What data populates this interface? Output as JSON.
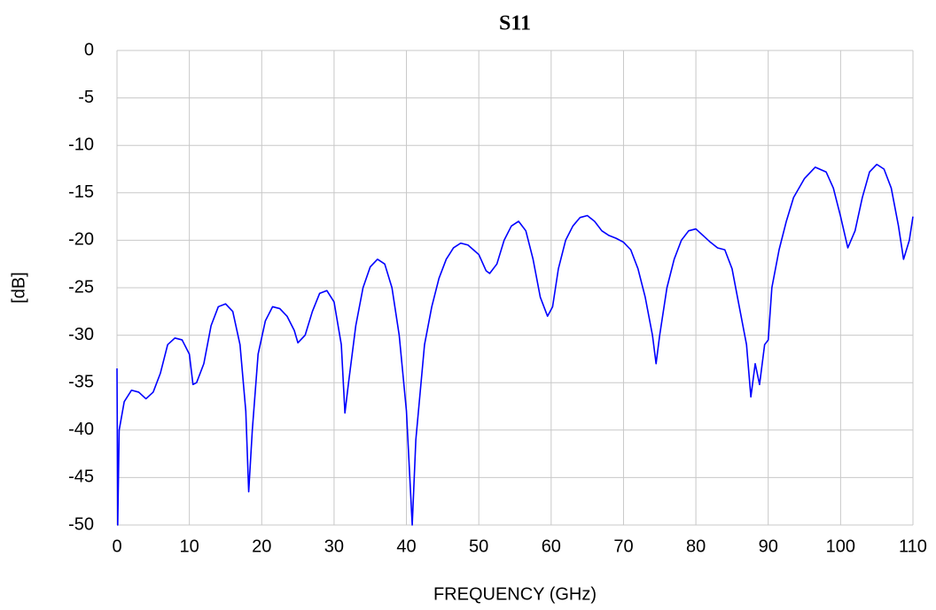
{
  "chart_data": {
    "type": "line",
    "title": "S11",
    "x_label": "FREQUENCY (GHz)",
    "y_label": "[dB]",
    "x": [
      0,
      0.1,
      0.3,
      1,
      2,
      3,
      4,
      5,
      6,
      7,
      8,
      9,
      10,
      10.5,
      11,
      12,
      13,
      14,
      15,
      16,
      17,
      17.8,
      18.2,
      18.7,
      19.5,
      20.5,
      21.5,
      22.5,
      23.5,
      24.5,
      25,
      26,
      27,
      28,
      29,
      30,
      31,
      31.5,
      32,
      33,
      34,
      35,
      36,
      37,
      38,
      39,
      40,
      40.8,
      41.3,
      42.5,
      43.5,
      44.5,
      45.5,
      46.5,
      47.5,
      48.5,
      50,
      51,
      51.5,
      52.5,
      53.5,
      54.5,
      55.5,
      56.5,
      57.5,
      58.5,
      59.5,
      60.2,
      61,
      62,
      63,
      64,
      65,
      66,
      67,
      68,
      69,
      70,
      71,
      72,
      73,
      74,
      74.5,
      75,
      76,
      77,
      78,
      79,
      80,
      81,
      82,
      83,
      84,
      85,
      86,
      87,
      87.6,
      88.2,
      88.8,
      89.5,
      90,
      90.5,
      91.5,
      92.5,
      93.5,
      95,
      96.5,
      98,
      99,
      100,
      101,
      102,
      103,
      104,
      105,
      106,
      107,
      108,
      108.7,
      109.5,
      110
    ],
    "series": [
      {
        "color": "#0000ff",
        "values": [
          -33.5,
          -50,
          -40,
          -37,
          -35.8,
          -36,
          -36.7,
          -36,
          -34,
          -31,
          -30.3,
          -30.5,
          -32,
          -35.2,
          -35,
          -33,
          -29,
          -27,
          -26.7,
          -27.5,
          -31,
          -38,
          -46.5,
          -40,
          -32,
          -28.5,
          -27,
          -27.2,
          -28,
          -29.5,
          -30.8,
          -30,
          -27.5,
          -25.6,
          -25.3,
          -26.5,
          -31,
          -38.2,
          -35,
          -29,
          -25,
          -22.8,
          -22,
          -22.5,
          -25,
          -30,
          -38,
          -50,
          -41,
          -31,
          -27,
          -24,
          -22,
          -20.8,
          -20.3,
          -20.5,
          -21.5,
          -23.2,
          -23.5,
          -22.5,
          -20,
          -18.5,
          -18,
          -19,
          -22,
          -26,
          -28,
          -27,
          -23,
          -20,
          -18.5,
          -17.6,
          -17.4,
          -18,
          -19,
          -19.5,
          -19.8,
          -20.2,
          -21,
          -23,
          -26,
          -30,
          -33,
          -30,
          -25,
          -22,
          -20,
          -19,
          -18.8,
          -19.5,
          -20.2,
          -20.8,
          -21,
          -23,
          -27,
          -31,
          -36.5,
          -33,
          -35.2,
          -31,
          -30.5,
          -25,
          -21,
          -18,
          -15.5,
          -13.5,
          -12.3,
          -12.8,
          -14.5,
          -17.5,
          -20.8,
          -19,
          -15.5,
          -12.8,
          -12,
          -12.5,
          -14.5,
          -18.5,
          -22,
          -20,
          -17.5
        ]
      }
    ],
    "xlim": [
      0,
      110
    ],
    "ylim": [
      -50,
      0
    ],
    "xticks": [
      0,
      10,
      20,
      30,
      40,
      50,
      60,
      70,
      80,
      90,
      100,
      110
    ],
    "yticks": [
      0,
      -5,
      -10,
      -15,
      -20,
      -25,
      -30,
      -35,
      -40,
      -45,
      -50
    ],
    "grid": true
  }
}
